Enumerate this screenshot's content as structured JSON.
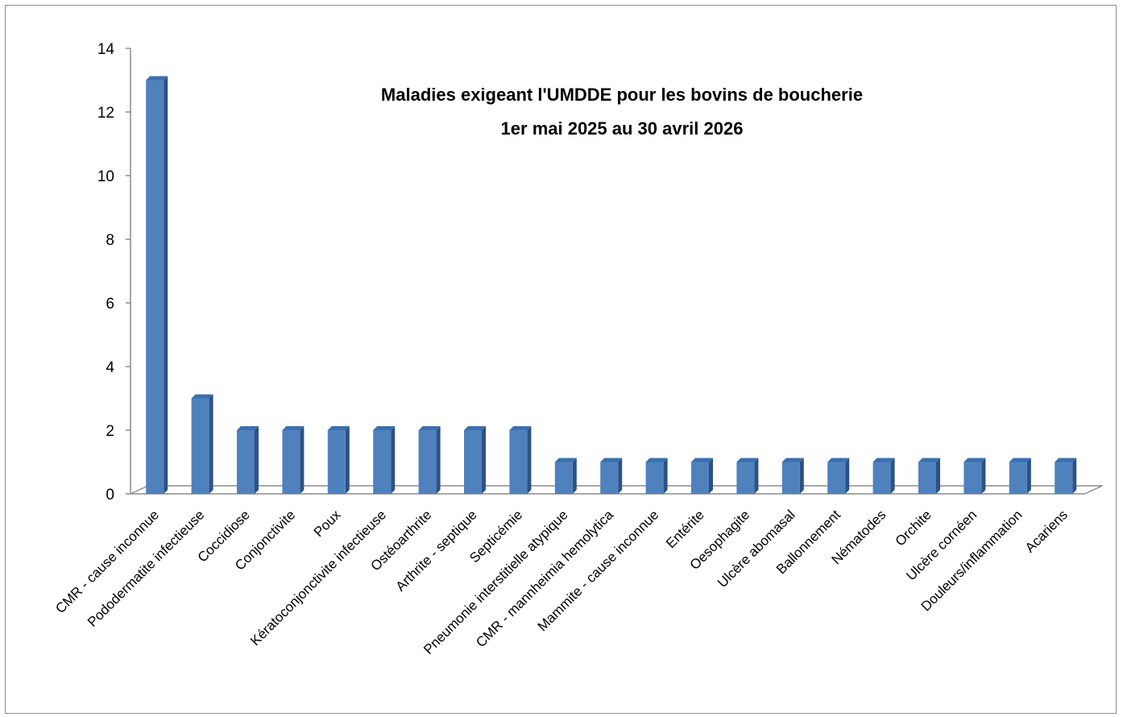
{
  "chart_data": {
    "type": "bar",
    "title_lines": [
      "Maladies exigeant l'UMDDE pour les bovins de boucherie",
      "1er mai 2025 au 30 avril 2026"
    ],
    "xlabel": "",
    "ylabel": "",
    "ylim": [
      0,
      14
    ],
    "yticks": [
      "0",
      "2",
      "4",
      "6",
      "8",
      "10",
      "12",
      "14"
    ],
    "grid": false,
    "legend": "none",
    "bar_color": "#4f81bd",
    "categories": [
      "CMR -  cause inconnue",
      "Pododermatite infectieuse",
      "Coccidiose",
      "Conjonctivite",
      "Poux",
      "Kératoconjonctivite infectieuse",
      "Ostéoarthrite",
      "Arthrite - septique",
      "Septicémie",
      "Pneumonie interstitielle atypique",
      "CMR - mannheimia hemolytica",
      "Mammite - cause inconnue",
      "Entérite",
      "Oesophagite",
      "Ulcère abomasal",
      "Ballonnement",
      "Nématodes",
      "Orchite",
      "Ulcère cornéen",
      "Douleurs/inflammation",
      "Acariens"
    ],
    "values": [
      13,
      3,
      2,
      2,
      2,
      2,
      2,
      2,
      2,
      1,
      1,
      1,
      1,
      1,
      1,
      1,
      1,
      1,
      1,
      1,
      1
    ]
  }
}
